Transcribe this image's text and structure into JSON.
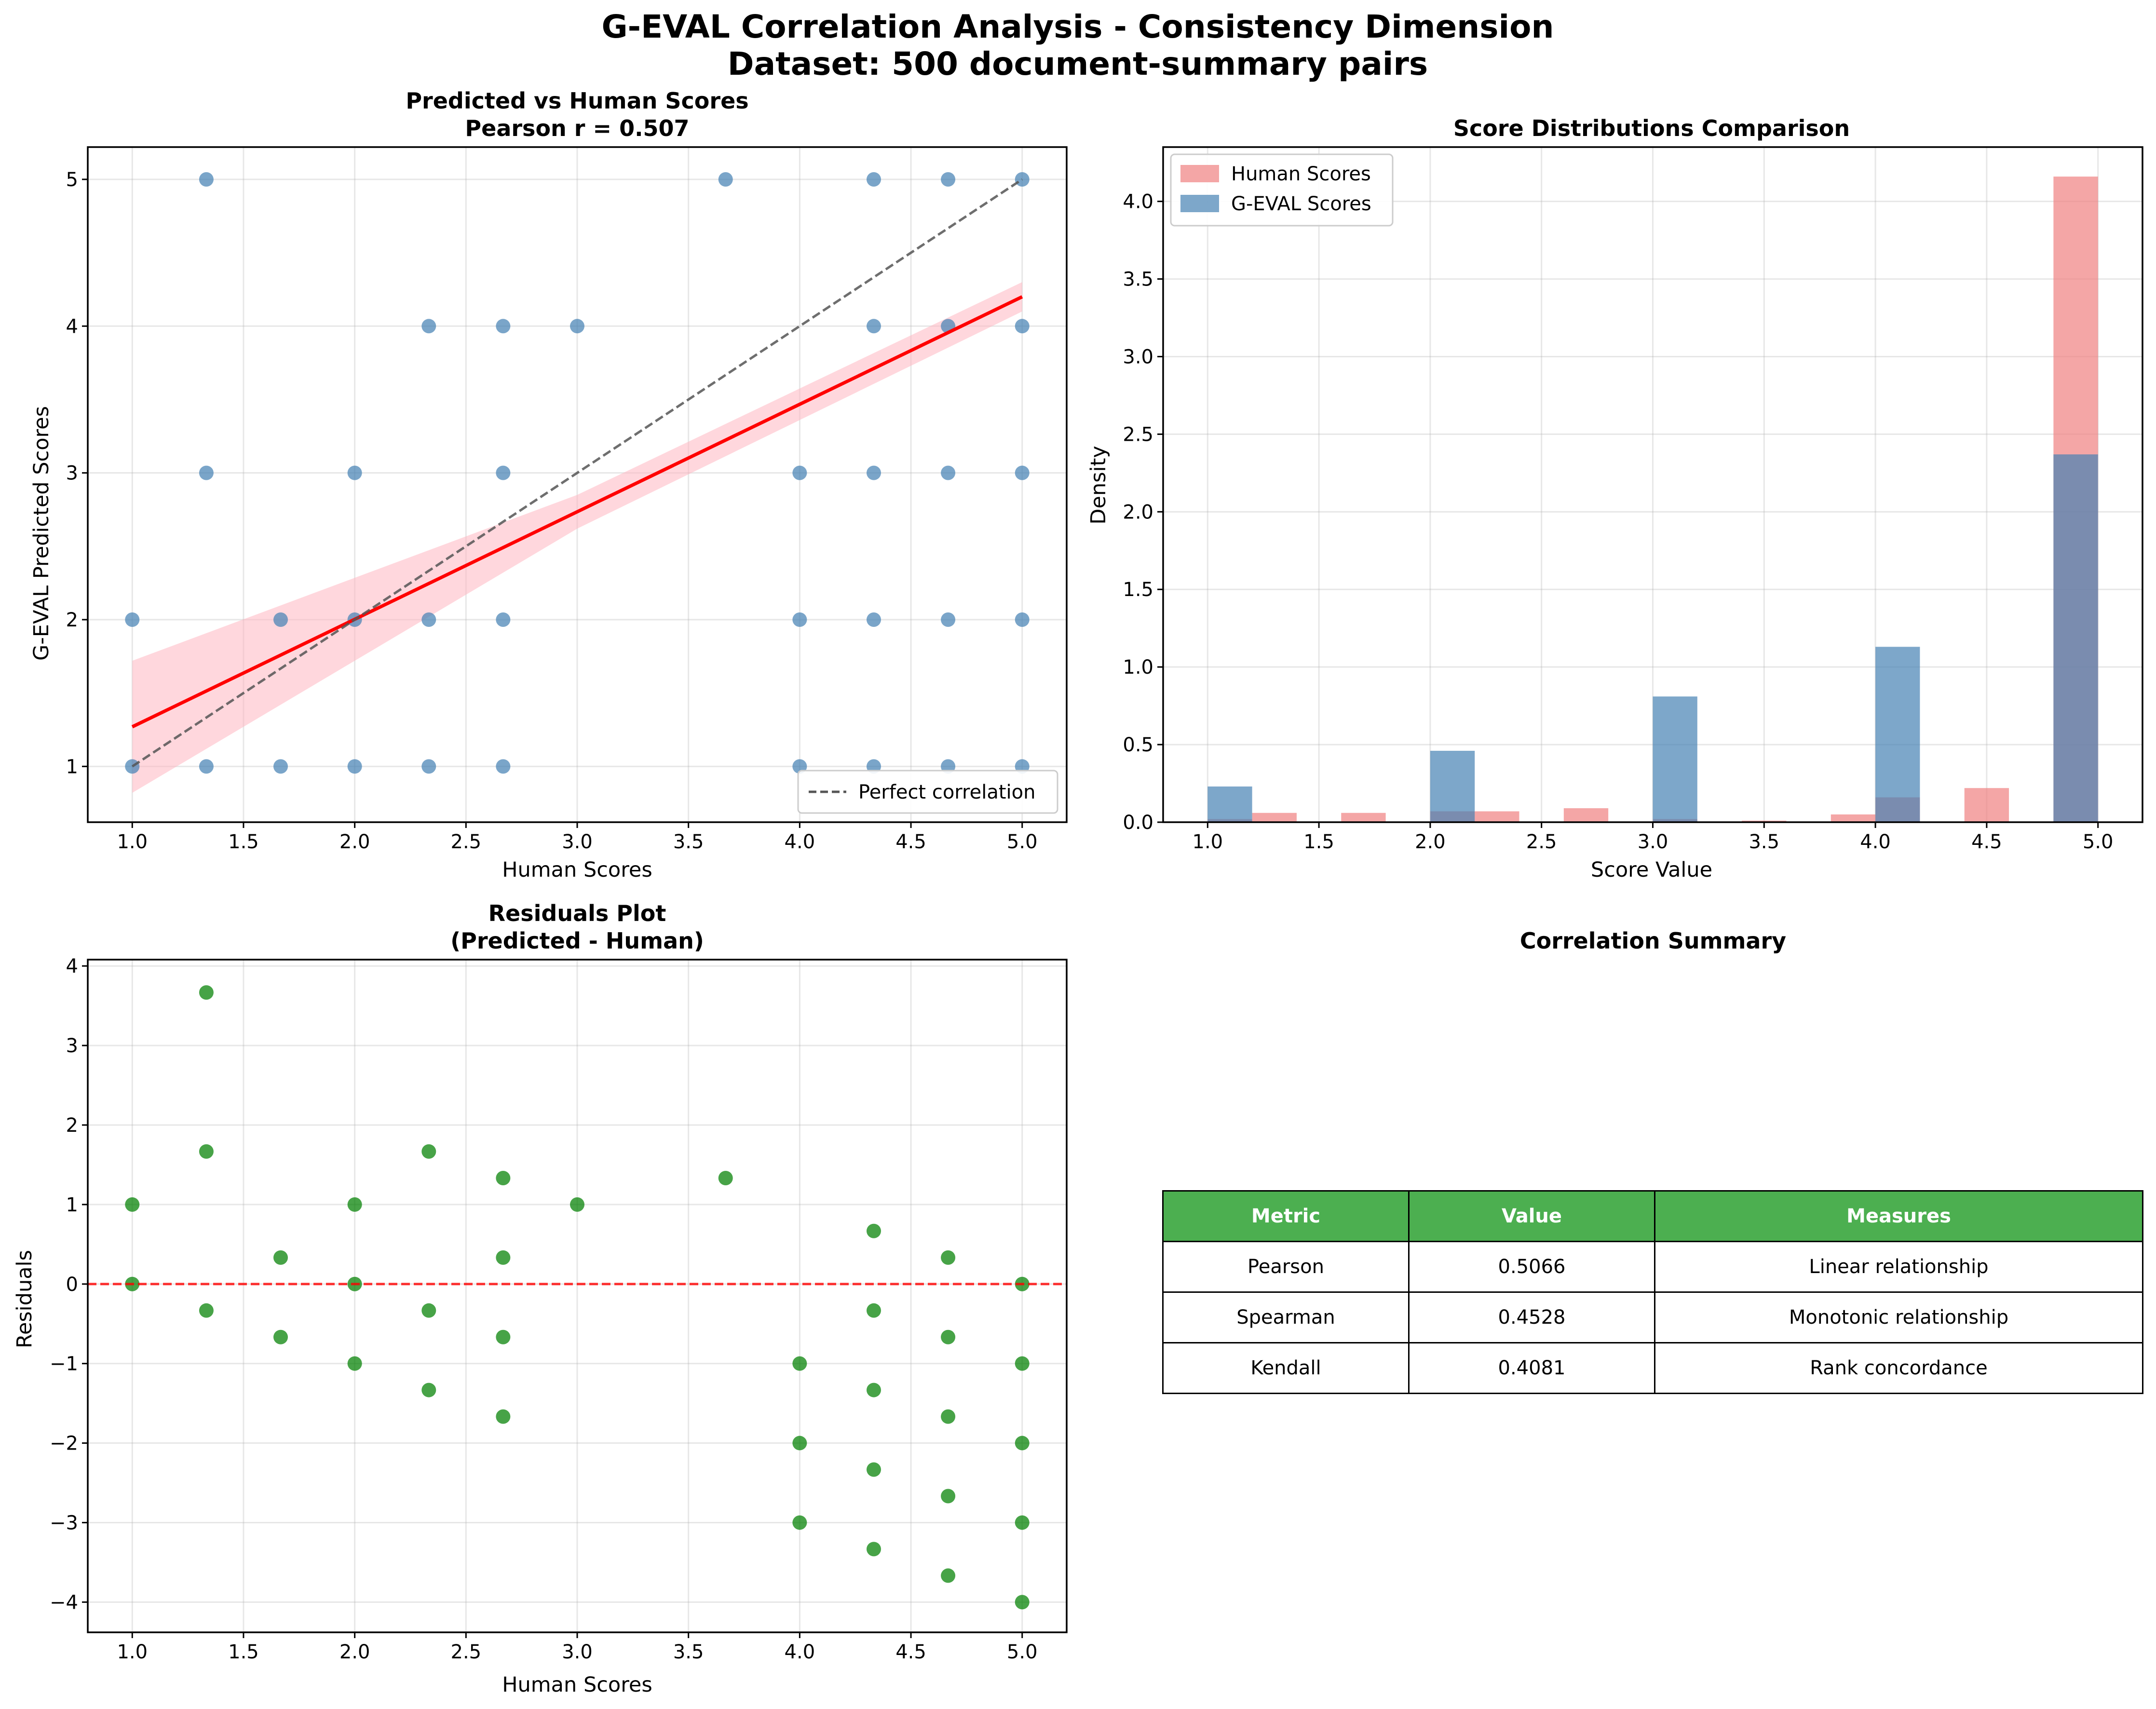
{
  "suptitle": [
    "G-EVAL Correlation Analysis - Consistency Dimension",
    "Dataset: 500 document-summary pairs"
  ],
  "colors": {
    "points": "#4682b4",
    "regression": "#ff0000",
    "ci_band": "#ffb6c1",
    "perfect": "#555555",
    "human_hist": "#f08080",
    "geval_hist": "#4682b4",
    "residual_points": "#008000",
    "zero_line": "#ff0000",
    "table_header": "#4caf50"
  },
  "chart_data": [
    {
      "type": "scatter",
      "id": "pred_vs_human",
      "title": [
        "Predicted vs Human Scores",
        "Pearson r = 0.507"
      ],
      "xlabel": "Human Scores",
      "ylabel": "G-EVAL Predicted Scores",
      "xlim": [
        0.8,
        5.2
      ],
      "ylim": [
        0.62,
        5.22
      ],
      "xticks": [
        "1.0",
        "1.5",
        "2.0",
        "2.5",
        "3.0",
        "3.5",
        "4.0",
        "4.5",
        "5.0"
      ],
      "yticks": [
        "1",
        "2",
        "3",
        "4",
        "5"
      ],
      "grid": true,
      "legend": {
        "position": "lower-right",
        "entries": [
          "Perfect correlation"
        ]
      },
      "points": [
        [
          1.0,
          2
        ],
        [
          1.0,
          1
        ],
        [
          1.333,
          5
        ],
        [
          1.333,
          3
        ],
        [
          1.333,
          1
        ],
        [
          1.667,
          2
        ],
        [
          1.667,
          1
        ],
        [
          2.0,
          3
        ],
        [
          2.0,
          2
        ],
        [
          2.0,
          1
        ],
        [
          2.333,
          4
        ],
        [
          2.333,
          2
        ],
        [
          2.333,
          1
        ],
        [
          2.667,
          4
        ],
        [
          2.667,
          3
        ],
        [
          2.667,
          2
        ],
        [
          2.667,
          1
        ],
        [
          3.0,
          4
        ],
        [
          3.667,
          5
        ],
        [
          4.0,
          3
        ],
        [
          4.0,
          2
        ],
        [
          4.0,
          1
        ],
        [
          4.333,
          5
        ],
        [
          4.333,
          4
        ],
        [
          4.333,
          3
        ],
        [
          4.333,
          2
        ],
        [
          4.333,
          1
        ],
        [
          4.667,
          5
        ],
        [
          4.667,
          4
        ],
        [
          4.667,
          3
        ],
        [
          4.667,
          2
        ],
        [
          4.667,
          1
        ],
        [
          5.0,
          5
        ],
        [
          5.0,
          4
        ],
        [
          5.0,
          3
        ],
        [
          5.0,
          2
        ],
        [
          5.0,
          1
        ]
      ],
      "regression": {
        "x": [
          1.0,
          5.0
        ],
        "y": [
          1.27,
          4.2
        ]
      },
      "ci_band": {
        "x": [
          1.0,
          3.0,
          5.0
        ],
        "lower": [
          0.82,
          2.62,
          4.1
        ],
        "upper": [
          1.72,
          2.85,
          4.3
        ]
      },
      "perfect_line": {
        "x": [
          1.0,
          5.0
        ],
        "y": [
          1.0,
          5.0
        ]
      }
    },
    {
      "type": "bar",
      "id": "score_distributions",
      "title": "Score Distributions Comparison",
      "xlabel": "Score Value",
      "ylabel": "Density",
      "xlim": [
        0.8,
        5.2
      ],
      "ylim": [
        0,
        4.35
      ],
      "xticks": [
        "1.0",
        "1.5",
        "2.0",
        "2.5",
        "3.0",
        "3.5",
        "4.0",
        "4.5",
        "5.0"
      ],
      "yticks": [
        "0.0",
        "0.5",
        "1.0",
        "1.5",
        "2.0",
        "2.5",
        "3.0",
        "3.5",
        "4.0"
      ],
      "grid": true,
      "legend": {
        "position": "top-left",
        "entries": [
          "Human Scores",
          "G-EVAL Scores"
        ]
      },
      "series": [
        {
          "name": "Human Scores",
          "bin_start": 1.0,
          "bin_width": 0.2,
          "values": [
            0.02,
            0.06,
            0,
            0.06,
            0,
            0.07,
            0.07,
            0,
            0.09,
            0,
            0.02,
            0,
            0.01,
            0,
            0.05,
            0.16,
            0,
            0.22,
            0,
            4.16
          ]
        },
        {
          "name": "G-EVAL Scores",
          "bin_start": 1.0,
          "bin_width": 0.2,
          "values": [
            0.23,
            0,
            0,
            0,
            0,
            0.46,
            0,
            0,
            0,
            0,
            0.81,
            0,
            0,
            0,
            0,
            1.13,
            0,
            0,
            0,
            2.37
          ]
        }
      ]
    },
    {
      "type": "scatter",
      "id": "residuals",
      "title": [
        "Residuals Plot",
        "(Predicted - Human)"
      ],
      "xlabel": "Human Scores",
      "ylabel": "Residuals",
      "xlim": [
        0.8,
        5.2
      ],
      "ylim": [
        -4.38,
        4.08
      ],
      "xticks": [
        "1.0",
        "1.5",
        "2.0",
        "2.5",
        "3.0",
        "3.5",
        "4.0",
        "4.5",
        "5.0"
      ],
      "yticks": [
        "4",
        "3",
        "2",
        "1",
        "0",
        "−1",
        "−2",
        "−3",
        "−4"
      ],
      "grid": true,
      "zero_line": 0,
      "points": [
        [
          1.0,
          1
        ],
        [
          1.0,
          0
        ],
        [
          1.333,
          3.667
        ],
        [
          1.333,
          1.667
        ],
        [
          1.333,
          -0.333
        ],
        [
          1.667,
          0.333
        ],
        [
          1.667,
          -0.667
        ],
        [
          2.0,
          1
        ],
        [
          2.0,
          0
        ],
        [
          2.0,
          -1
        ],
        [
          2.333,
          1.667
        ],
        [
          2.333,
          -0.333
        ],
        [
          2.333,
          -1.333
        ],
        [
          2.667,
          1.333
        ],
        [
          2.667,
          0.333
        ],
        [
          2.667,
          -0.667
        ],
        [
          2.667,
          -1.667
        ],
        [
          3.0,
          1
        ],
        [
          3.667,
          1.333
        ],
        [
          4.0,
          -1
        ],
        [
          4.0,
          -2
        ],
        [
          4.0,
          -3
        ],
        [
          4.333,
          0.667
        ],
        [
          4.333,
          -0.333
        ],
        [
          4.333,
          -1.333
        ],
        [
          4.333,
          -2.333
        ],
        [
          4.333,
          -3.333
        ],
        [
          4.667,
          0.333
        ],
        [
          4.667,
          -0.667
        ],
        [
          4.667,
          -1.667
        ],
        [
          4.667,
          -2.667
        ],
        [
          4.667,
          -3.667
        ],
        [
          5.0,
          0
        ],
        [
          5.0,
          -1
        ],
        [
          5.0,
          -2
        ],
        [
          5.0,
          -3
        ],
        [
          5.0,
          -4
        ]
      ]
    },
    {
      "type": "table",
      "id": "correlation_summary",
      "title": "Correlation Summary",
      "columns": [
        "Metric",
        "Value",
        "Measures"
      ],
      "rows": [
        [
          "Pearson",
          "0.5066",
          "Linear relationship"
        ],
        [
          "Spearman",
          "0.4528",
          "Monotonic relationship"
        ],
        [
          "Kendall",
          "0.4081",
          "Rank concordance"
        ]
      ]
    }
  ]
}
